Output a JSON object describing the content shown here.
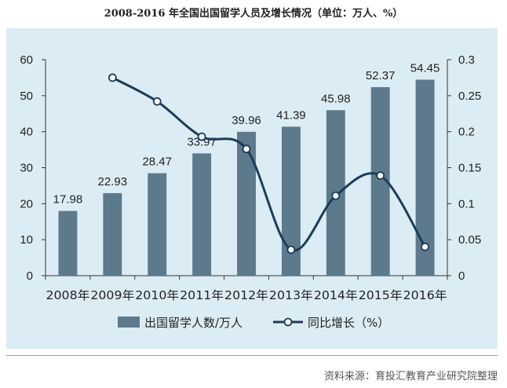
{
  "title": "2008-2016 年全国出国留学人员及增长情况（单位：万人、%）",
  "source": "资料来源：育投汇教育产业研究院整理",
  "colors": {
    "bar": "#5c7a8c",
    "line": "#1b3d5a",
    "background": "#dcecf4"
  },
  "chart_data": {
    "type": "bar",
    "title": "2008-2016 年全国出国留学人员及增长情况（单位：万人、%）",
    "categories": [
      "2008年",
      "2009年",
      "2010年",
      "2011年",
      "2012年",
      "2013年",
      "2014年",
      "2015年",
      "2016年"
    ],
    "ylim": [
      0,
      60
    ],
    "y_ticks": [
      "0",
      "10",
      "20",
      "30",
      "40",
      "50",
      "60"
    ],
    "y2lim": [
      0,
      0.3
    ],
    "y2_ticks": [
      "0",
      "0.05",
      "0.1",
      "0.15",
      "0.2",
      "0.25",
      "0.3"
    ],
    "series": [
      {
        "name": "出国留学人数/万人",
        "type": "bar",
        "axis": "left",
        "values": [
          17.98,
          22.93,
          28.47,
          33.97,
          39.96,
          41.39,
          45.98,
          52.37,
          54.45
        ],
        "labels": [
          "17.98",
          "22.93",
          "28.47",
          "33.97",
          "39.96",
          "41.39",
          "45.98",
          "52.37",
          "54.45"
        ]
      },
      {
        "name": "同比增长（%）",
        "type": "line",
        "axis": "right",
        "smooth": true,
        "values": [
          null,
          0.275,
          0.242,
          0.193,
          0.176,
          0.036,
          0.111,
          0.139,
          0.04
        ]
      }
    ],
    "legend": "bottom",
    "grid": false
  }
}
